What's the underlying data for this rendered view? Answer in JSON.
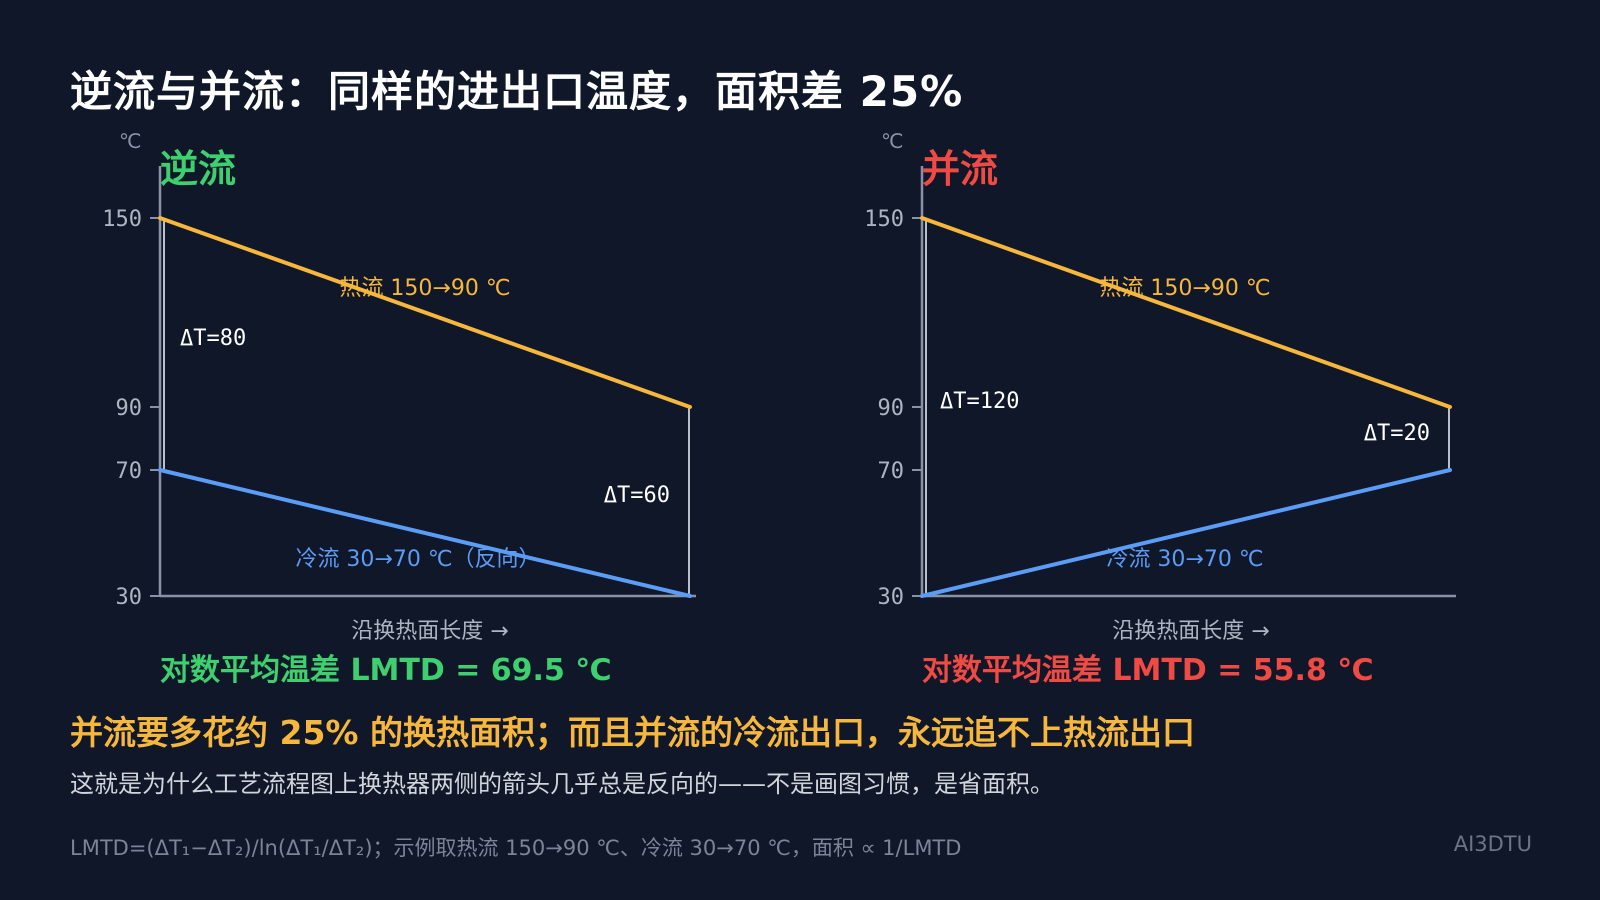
{
  "title": "逆流与并流：同样的进出口温度，面积差 25%",
  "colors": {
    "background": "#0f1729",
    "hot": "#f6b73c",
    "cold": "#5b9cf6",
    "counter_accent": "#3ecf6e",
    "parallel_accent": "#ef4a43",
    "axis": "#8a93a5"
  },
  "chart_data": [
    {
      "type": "line",
      "name": "逆流",
      "y_unit": "℃",
      "xlabel": "沿换热面长度 →",
      "yticks": [
        150,
        90,
        70,
        30
      ],
      "ylim": [
        30,
        150
      ],
      "xlim": [
        0,
        1
      ],
      "series": [
        {
          "name": "热流 150→90 ℃",
          "x": [
            0,
            1
          ],
          "y": [
            150,
            90
          ]
        },
        {
          "name": "冷流 30→70 ℃（反向）",
          "x": [
            0,
            1
          ],
          "y": [
            70,
            30
          ]
        }
      ],
      "annotations": [
        {
          "text": "ΔT=80",
          "x": 0,
          "from": 70,
          "to": 150
        },
        {
          "text": "ΔT=60",
          "x": 1,
          "from": 30,
          "to": 90
        }
      ],
      "lmtd_label": "对数平均温差 LMTD = 69.5 ℃",
      "lmtd": 69.5
    },
    {
      "type": "line",
      "name": "并流",
      "y_unit": "℃",
      "xlabel": "沿换热面长度 →",
      "yticks": [
        150,
        90,
        70,
        30
      ],
      "ylim": [
        30,
        150
      ],
      "xlim": [
        0,
        1
      ],
      "series": [
        {
          "name": "热流 150→90 ℃",
          "x": [
            0,
            1
          ],
          "y": [
            150,
            90
          ]
        },
        {
          "name": "冷流 30→70 ℃",
          "x": [
            0,
            1
          ],
          "y": [
            30,
            70
          ]
        }
      ],
      "annotations": [
        {
          "text": "ΔT=120",
          "x": 0,
          "from": 30,
          "to": 150
        },
        {
          "text": "ΔT=20",
          "x": 1,
          "from": 70,
          "to": 90
        }
      ],
      "lmtd_label": "对数平均温差 LMTD = 55.8 ℃",
      "lmtd": 55.8
    }
  ],
  "conclusion": "并流要多花约 25% 的换热面积；而且并流的冷流出口，永远追不上热流出口",
  "explanation": "这就是为什么工艺流程图上换热器两侧的箭头几乎总是反向的——不是画图习惯，是省面积。",
  "footnote": "LMTD=(ΔT₁−ΔT₂)/ln(ΔT₁/ΔT₂)；示例取热流 150→90 ℃、冷流 30→70 ℃，面积 ∝ 1/LMTD",
  "brand": "AI3DTU"
}
